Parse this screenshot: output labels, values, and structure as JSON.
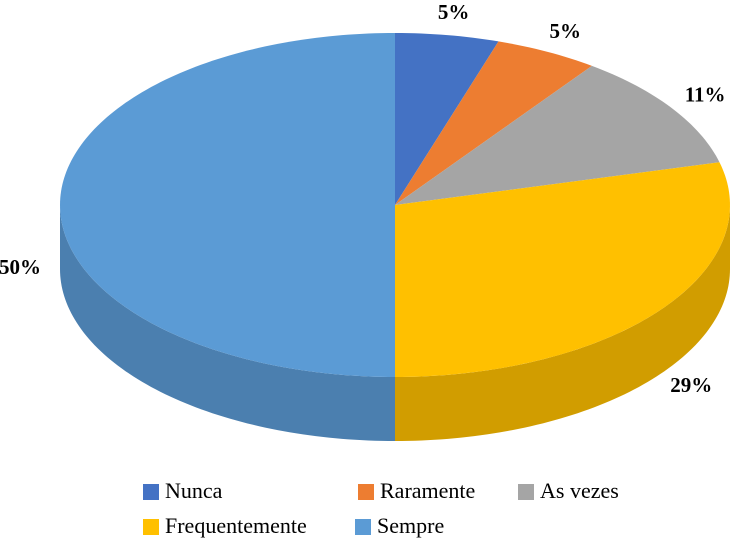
{
  "chart_data": {
    "type": "pie",
    "categories": [
      "Nunca",
      "Raramente",
      "As vezes",
      "Frequentemente",
      "Sempre"
    ],
    "values": [
      5,
      5,
      11,
      29,
      50
    ],
    "value_labels": [
      "5%",
      "5%",
      "11%",
      "29%",
      "50%"
    ],
    "colors": [
      "#4472c4",
      "#ed7d31",
      "#a5a5a5",
      "#ffc000",
      "#5b9bd5"
    ],
    "legend": "bottom"
  }
}
